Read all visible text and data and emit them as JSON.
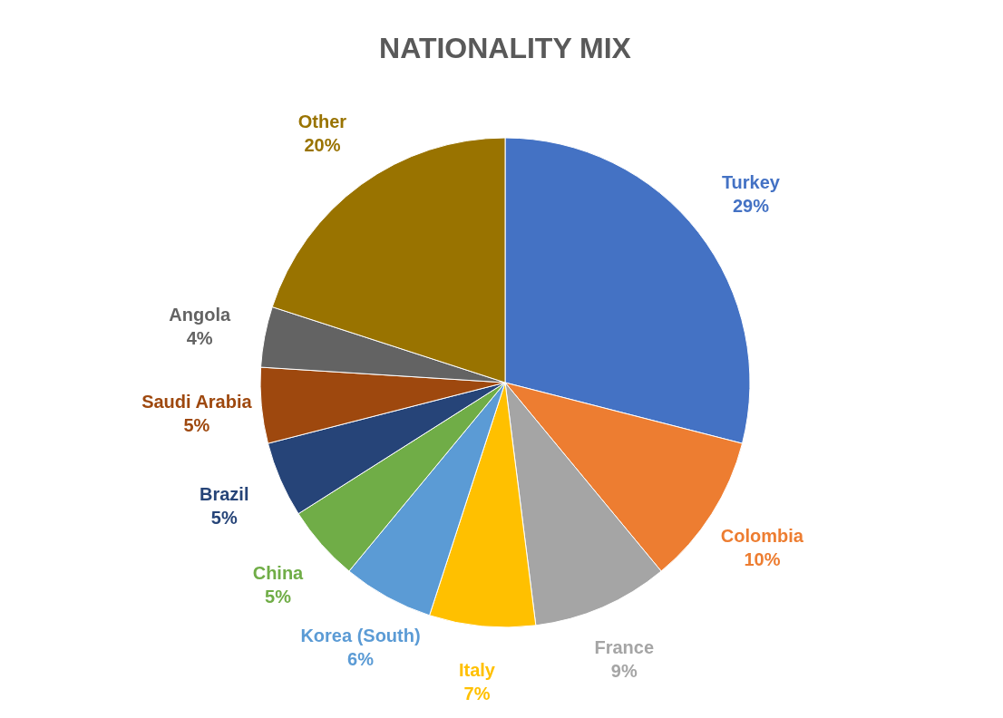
{
  "chart_data": {
    "type": "pie",
    "title": "NATIONALITY MIX",
    "categories": [
      "Turkey",
      "Colombia",
      "France",
      "Italy",
      "Korea (South)",
      "China",
      "Brazil",
      "Saudi Arabia",
      "Angola",
      "Other"
    ],
    "values": [
      29,
      10,
      9,
      7,
      6,
      5,
      5,
      5,
      4,
      20
    ],
    "value_labels": [
      "29%",
      "10%",
      "9%",
      "7%",
      "6%",
      "5%",
      "5%",
      "5%",
      "4%",
      "20%"
    ],
    "colors": [
      "#4472c4",
      "#ed7d31",
      "#a5a5a5",
      "#ffc000",
      "#5b9bd5",
      "#70ad47",
      "#264478",
      "#9e480e",
      "#636363",
      "#997300"
    ],
    "legend": false
  }
}
